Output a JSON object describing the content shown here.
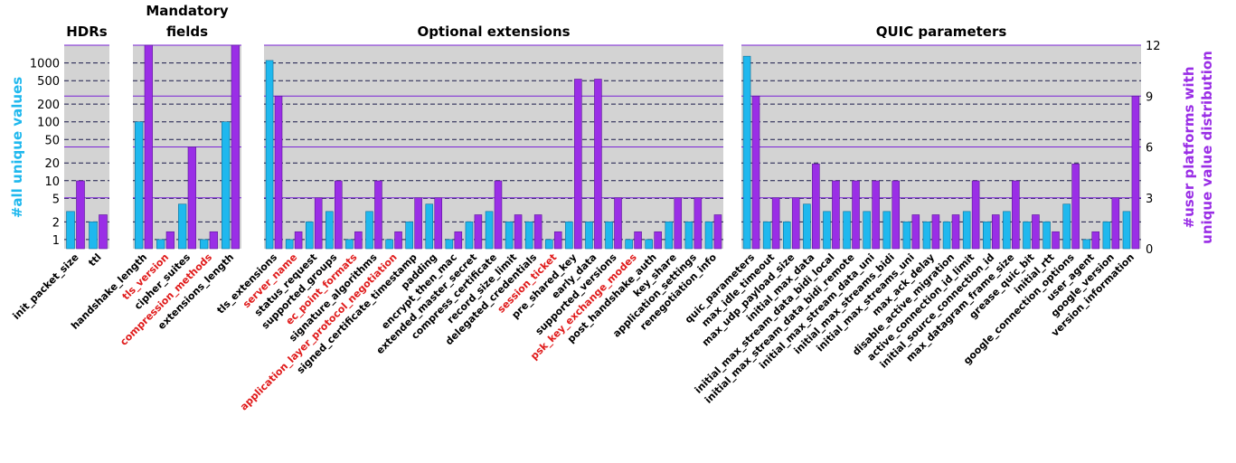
{
  "chart_data": {
    "type": "bar",
    "ylabel_left": "#all unique values",
    "ylabel_right": [
      "#user platforms with",
      "unique value distribution"
    ],
    "left_axis": {
      "scale": "log",
      "ylim": [
        0.7,
        2000
      ],
      "ticks": [
        1,
        2,
        5,
        10,
        20,
        50,
        100,
        200,
        500,
        1000
      ],
      "tick_labels": [
        "1",
        "2",
        "5",
        "10",
        "20",
        "50",
        "100",
        "200",
        "500",
        "1000"
      ]
    },
    "right_axis": {
      "scale": "linear",
      "ylim": [
        0,
        12
      ],
      "ticks": [
        0,
        3,
        6,
        9,
        12
      ],
      "tick_labels": [
        "0",
        "3",
        "6",
        "9",
        "12"
      ]
    },
    "grid": true,
    "colors": {
      "left_series": "#1fb8ee",
      "right_series": "#9a2ee6",
      "highlight_label": "#e01b1b",
      "background": "#d3d3d3",
      "grid_dashed": "#1a1a4a",
      "grid_solid": "#7a22d6"
    },
    "series": [
      {
        "name": "#all unique values",
        "axis": "left"
      },
      {
        "name": "#user platforms with unique value distribution",
        "axis": "right"
      }
    ],
    "panels": [
      {
        "title": "HDRs",
        "categories": [
          "init_packet_size",
          "ttl"
        ],
        "highlighted": [
          false,
          false
        ],
        "left_values": [
          3,
          2
        ],
        "right_values": [
          4,
          2
        ]
      },
      {
        "title": "Mandatory fields",
        "title_lines": [
          "Mandatory",
          "fields"
        ],
        "categories": [
          "handshake_length",
          "tls_version",
          "cipher_suites",
          "compression_methods",
          "extensions_length"
        ],
        "highlighted": [
          false,
          true,
          false,
          true,
          false
        ],
        "left_values": [
          100,
          1,
          4,
          1,
          100
        ],
        "right_values": [
          12,
          1,
          6,
          1,
          12
        ]
      },
      {
        "title": "Optional extensions",
        "categories": [
          "tls_extensions",
          "server_name",
          "status_request",
          "supported_groups",
          "ec_point_formats",
          "signature_algorithms",
          "application_layer_protocol_negotiation",
          "signed_certificate_timestamp",
          "padding",
          "encrypt_then_mac",
          "extended_master_secret",
          "compress_certificate",
          "record_size_limit",
          "delegated_credentials",
          "session_ticket",
          "pre_shared_key",
          "early_data",
          "supported_versions",
          "psk_key_exchange_modes",
          "post_handshake_auth",
          "key_share",
          "application_settings",
          "renegotiation_info"
        ],
        "highlighted": [
          false,
          true,
          false,
          false,
          true,
          false,
          true,
          false,
          false,
          false,
          false,
          false,
          false,
          false,
          true,
          false,
          false,
          false,
          true,
          false,
          false,
          false,
          false
        ],
        "left_values": [
          1100,
          1,
          2,
          3,
          1,
          3,
          1,
          2,
          4,
          1,
          2,
          3,
          2,
          2,
          1,
          2,
          2,
          2,
          1,
          1,
          2,
          2,
          2
        ],
        "right_values": [
          9,
          1,
          3,
          4,
          1,
          4,
          1,
          3,
          3,
          1,
          2,
          4,
          2,
          2,
          1,
          10,
          10,
          3,
          1,
          1,
          3,
          3,
          2
        ]
      },
      {
        "title": "QUIC parameters",
        "categories": [
          "quic_parameters",
          "max_idle_timeout",
          "max_udp_payload_size",
          "initial_max_data",
          "initial_max_stream_data_bidi_local",
          "initial_max_stream_data_bidi_remote",
          "initial_max_stream_data_uni",
          "initial_max_streams_bidi",
          "initial_max_streams_uni",
          "max_ack_delay",
          "disable_active_migration",
          "active_connection_id_limit",
          "initial_source_connection_id",
          "max_datagram_frame_size",
          "grease_quic_bit",
          "initial_rtt",
          "google_connection_options",
          "user_agent",
          "google_version",
          "version_information"
        ],
        "highlighted": [
          false,
          false,
          false,
          false,
          false,
          false,
          false,
          false,
          false,
          false,
          false,
          false,
          false,
          false,
          false,
          false,
          false,
          false,
          false,
          false
        ],
        "left_values": [
          1300,
          2,
          2,
          4,
          3,
          3,
          3,
          3,
          2,
          2,
          2,
          3,
          2,
          3,
          2,
          2,
          4,
          1,
          2,
          3
        ],
        "right_values": [
          9,
          3,
          3,
          5,
          4,
          4,
          4,
          4,
          2,
          2,
          2,
          4,
          2,
          4,
          2,
          1,
          5,
          1,
          3,
          9
        ]
      }
    ]
  }
}
